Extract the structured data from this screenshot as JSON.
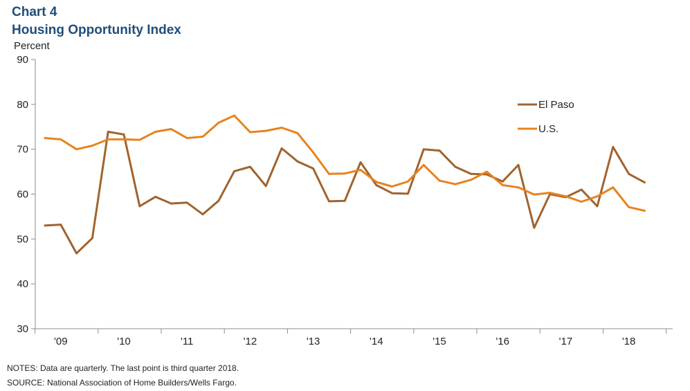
{
  "chart_data": {
    "type": "line",
    "title": "Chart 4",
    "subtitle": "Housing Opportunity Index",
    "ylabel": "Percent",
    "xlabel": "",
    "ylim": [
      30,
      90
    ],
    "yticks": [
      30,
      40,
      50,
      60,
      70,
      80,
      90
    ],
    "year_labels": [
      "'09",
      "'10",
      "'11",
      "'12",
      "'13",
      "'14",
      "'15",
      "'16",
      "'17",
      "'18"
    ],
    "legend_position": "right",
    "grid": false,
    "series": [
      {
        "name": "El Paso",
        "color": "#a0632d",
        "values": [
          53.0,
          53.2,
          46.8,
          50.2,
          73.9,
          73.3,
          57.3,
          59.4,
          57.9,
          58.1,
          55.5,
          58.5,
          65.1,
          66.1,
          61.8,
          70.2,
          67.3,
          65.7,
          58.4,
          58.5,
          67.1,
          62.0,
          60.2,
          60.1,
          70.0,
          69.7,
          66.1,
          64.5,
          64.4,
          62.8,
          66.5,
          52.5,
          60.0,
          59.3,
          61.0,
          57.3,
          70.5,
          64.5,
          62.6
        ]
      },
      {
        "name": "U.S.",
        "color": "#e8821e",
        "values": [
          72.5,
          72.2,
          70.0,
          70.8,
          72.2,
          72.2,
          72.1,
          73.9,
          74.5,
          72.5,
          72.8,
          75.9,
          77.5,
          73.8,
          74.1,
          74.8,
          73.6,
          69.3,
          64.5,
          64.6,
          65.4,
          62.7,
          61.7,
          62.8,
          66.5,
          63.0,
          62.2,
          63.2,
          65.0,
          62.0,
          61.5,
          59.9,
          60.3,
          59.5,
          58.3,
          59.5,
          61.5,
          57.1,
          56.3
        ]
      }
    ]
  },
  "notes": {
    "line1": "NOTES: Data are quarterly. The last point is third quarter 2018.",
    "line2": "SOURCE: National Association of Home Builders/Wells Fargo."
  }
}
